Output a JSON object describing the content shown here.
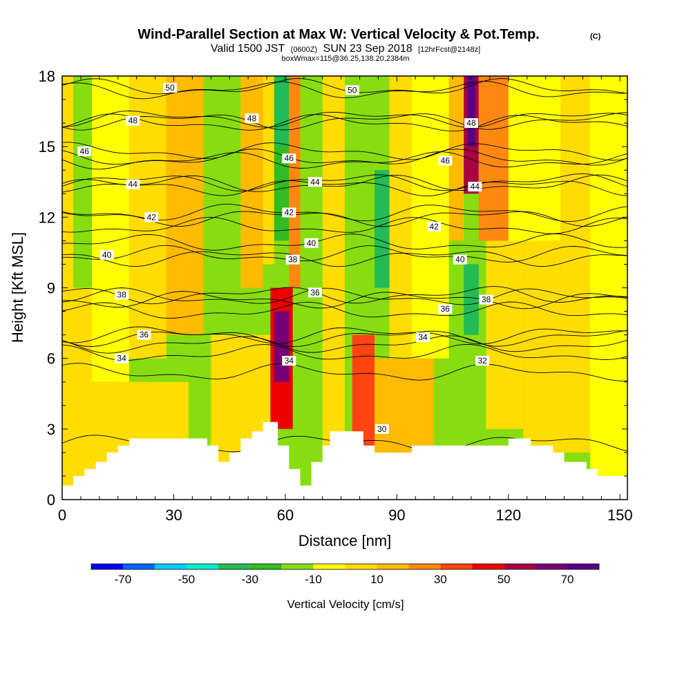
{
  "header": {
    "title": "Wind-Parallel Section at Max W: Vertical Velocity & Pot.Temp.",
    "copyright": "(C)",
    "valid_prefix": "Valid 1500 JST",
    "valid_utc": "(0600Z)",
    "valid_date": "SUN 23 Sep 2018",
    "forecast": "[12hrFcst@2148z]",
    "box_info": "boxWmax=115@36.25,138.20,2384m"
  },
  "chart_data": {
    "type": "heatmap",
    "xlabel": "Distance [nm]",
    "ylabel": "Height [Kft MSL]",
    "xlim": [
      0,
      152
    ],
    "ylim": [
      0,
      18
    ],
    "x_ticks": [
      0,
      30,
      60,
      90,
      120,
      150
    ],
    "y_ticks": [
      0,
      3,
      6,
      9,
      12,
      15,
      18
    ],
    "colorbar": {
      "title": "Vertical Velocity [cm/s]",
      "levels": [
        -80,
        -70,
        -60,
        -50,
        -40,
        -30,
        -20,
        -10,
        0,
        10,
        20,
        30,
        40,
        50,
        60,
        70,
        80
      ],
      "tick_labels": [
        "-70",
        "-50",
        "-30",
        "-10",
        "10",
        "30",
        "50",
        "70"
      ],
      "colors": [
        "#0000ee",
        "#0066ff",
        "#00ccff",
        "#00eecc",
        "#22bb55",
        "#33bb22",
        "#88dd11",
        "#ffff00",
        "#ffdd00",
        "#ffbb00",
        "#ff8811",
        "#ff4411",
        "#ee0000",
        "#aa0044",
        "#770077",
        "#550088"
      ]
    },
    "cells": [
      {
        "x0": 0,
        "x1": 3,
        "y0": 0,
        "y1": 18,
        "w": 5
      },
      {
        "x0": 3,
        "x1": 8,
        "y0": 9,
        "y1": 18,
        "w": -12
      },
      {
        "x0": 3,
        "x1": 8,
        "y0": 0,
        "y1": 9,
        "w": 5
      },
      {
        "x0": 8,
        "x1": 18,
        "y0": 5,
        "y1": 18,
        "w": -5
      },
      {
        "x0": 0,
        "x1": 35,
        "y0": 0,
        "y1": 5,
        "w": 5
      },
      {
        "x0": 18,
        "x1": 28,
        "y0": 6,
        "y1": 18,
        "w": 5
      },
      {
        "x0": 28,
        "x1": 38,
        "y0": 7,
        "y1": 18,
        "w": 15
      },
      {
        "x0": 34,
        "x1": 40,
        "y0": 1,
        "y1": 7,
        "w": -12
      },
      {
        "x0": 38,
        "x1": 48,
        "y0": 7,
        "y1": 18,
        "w": -15
      },
      {
        "x0": 40,
        "x1": 56,
        "y0": 0,
        "y1": 7,
        "w": 5
      },
      {
        "x0": 48,
        "x1": 54,
        "y0": 9,
        "y1": 18,
        "w": 15
      },
      {
        "x0": 54,
        "x1": 57,
        "y0": 10,
        "y1": 18,
        "w": 5
      },
      {
        "x0": 57,
        "x1": 61,
        "y0": 15,
        "y1": 18,
        "w": -35
      },
      {
        "x0": 57,
        "x1": 61,
        "y0": 11,
        "y1": 15,
        "w": -22
      },
      {
        "x0": 56,
        "x1": 62,
        "y0": 3,
        "y1": 9,
        "w": 45
      },
      {
        "x0": 57,
        "x1": 61,
        "y0": 5,
        "y1": 8,
        "w": 65
      },
      {
        "x0": 61,
        "x1": 64,
        "y0": 9,
        "y1": 18,
        "w": 25
      },
      {
        "x0": 64,
        "x1": 70,
        "y0": 0,
        "y1": 18,
        "w": -12
      },
      {
        "x0": 70,
        "x1": 76,
        "y0": 0,
        "y1": 18,
        "w": 5
      },
      {
        "x0": 76,
        "x1": 88,
        "y0": 5,
        "y1": 18,
        "w": -15
      },
      {
        "x0": 84,
        "x1": 88,
        "y0": 9,
        "y1": 14,
        "w": -35
      },
      {
        "x0": 78,
        "x1": 84,
        "y0": 2,
        "y1": 7,
        "w": 35
      },
      {
        "x0": 84,
        "x1": 100,
        "y0": 2,
        "y1": 6,
        "w": 15
      },
      {
        "x0": 88,
        "x1": 94,
        "y0": 6,
        "y1": 18,
        "w": 5
      },
      {
        "x0": 94,
        "x1": 104,
        "y0": 6,
        "y1": 18,
        "w": -5
      },
      {
        "x0": 104,
        "x1": 108,
        "y0": 11,
        "y1": 18,
        "w": 15
      },
      {
        "x0": 104,
        "x1": 114,
        "y0": 5,
        "y1": 11,
        "w": -15
      },
      {
        "x0": 108,
        "x1": 112,
        "y0": 7,
        "y1": 10,
        "w": -35
      },
      {
        "x0": 108,
        "x1": 112,
        "y0": 13,
        "y1": 18,
        "w": 55
      },
      {
        "x0": 109,
        "x1": 111,
        "y0": 15,
        "y1": 18,
        "w": 75
      },
      {
        "x0": 112,
        "x1": 120,
        "y0": 11,
        "y1": 18,
        "w": 25
      },
      {
        "x0": 114,
        "x1": 124,
        "y0": 3,
        "y1": 11,
        "w": 5
      },
      {
        "x0": 120,
        "x1": 135,
        "y0": 11,
        "y1": 18,
        "w": -5
      },
      {
        "x0": 124,
        "x1": 134,
        "y0": 2,
        "y1": 11,
        "w": 5
      },
      {
        "x0": 134,
        "x1": 142,
        "y0": 2,
        "y1": 18,
        "w": 5
      },
      {
        "x0": 142,
        "x1": 152,
        "y0": 1,
        "y1": 18,
        "w": -5
      }
    ],
    "terrain": [
      {
        "x": 0,
        "y": 0.6
      },
      {
        "x": 3,
        "y": 0.6
      },
      {
        "x": 3,
        "y": 1.0
      },
      {
        "x": 6,
        "y": 1.0
      },
      {
        "x": 6,
        "y": 1.3
      },
      {
        "x": 9,
        "y": 1.3
      },
      {
        "x": 9,
        "y": 1.6
      },
      {
        "x": 12,
        "y": 1.6
      },
      {
        "x": 12,
        "y": 2.0
      },
      {
        "x": 15,
        "y": 2.0
      },
      {
        "x": 15,
        "y": 2.3
      },
      {
        "x": 18,
        "y": 2.3
      },
      {
        "x": 18,
        "y": 2.6
      },
      {
        "x": 39,
        "y": 2.6
      },
      {
        "x": 39,
        "y": 2.3
      },
      {
        "x": 42,
        "y": 2.3
      },
      {
        "x": 42,
        "y": 1.6
      },
      {
        "x": 45,
        "y": 1.6
      },
      {
        "x": 45,
        "y": 2.0
      },
      {
        "x": 48,
        "y": 2.0
      },
      {
        "x": 48,
        "y": 2.6
      },
      {
        "x": 51,
        "y": 2.6
      },
      {
        "x": 51,
        "y": 2.9
      },
      {
        "x": 54,
        "y": 2.9
      },
      {
        "x": 54,
        "y": 3.3
      },
      {
        "x": 58,
        "y": 3.3
      },
      {
        "x": 58,
        "y": 2.3
      },
      {
        "x": 61,
        "y": 2.3
      },
      {
        "x": 61,
        "y": 1.3
      },
      {
        "x": 64,
        "y": 1.3
      },
      {
        "x": 64,
        "y": 0.6
      },
      {
        "x": 67,
        "y": 0.6
      },
      {
        "x": 67,
        "y": 1.6
      },
      {
        "x": 70,
        "y": 1.6
      },
      {
        "x": 70,
        "y": 2.3
      },
      {
        "x": 72,
        "y": 2.3
      },
      {
        "x": 72,
        "y": 2.9
      },
      {
        "x": 81,
        "y": 2.9
      },
      {
        "x": 81,
        "y": 2.3
      },
      {
        "x": 84,
        "y": 2.3
      },
      {
        "x": 84,
        "y": 2.0
      },
      {
        "x": 94,
        "y": 2.0
      },
      {
        "x": 94,
        "y": 2.3
      },
      {
        "x": 120,
        "y": 2.3
      },
      {
        "x": 120,
        "y": 2.6
      },
      {
        "x": 126,
        "y": 2.6
      },
      {
        "x": 126,
        "y": 2.3
      },
      {
        "x": 132,
        "y": 2.3
      },
      {
        "x": 132,
        "y": 2.0
      },
      {
        "x": 135,
        "y": 2.0
      },
      {
        "x": 135,
        "y": 1.6
      },
      {
        "x": 141,
        "y": 1.6
      },
      {
        "x": 141,
        "y": 1.3
      },
      {
        "x": 144,
        "y": 1.3
      },
      {
        "x": 144,
        "y": 1.0
      },
      {
        "x": 152,
        "y": 1.0
      }
    ],
    "contours": [
      {
        "value": 30,
        "y": 2.4,
        "label": "30",
        "label_x": 86,
        "label_y": 3.0
      },
      {
        "value": 32,
        "y": 5.4,
        "label": "32",
        "label_x": 113,
        "label_y": 5.9
      },
      {
        "value": 34,
        "y": 6.2,
        "label": "34",
        "label_x": 16,
        "label_y": 6.0
      },
      {
        "value": 34,
        "y": 6.6,
        "label": "34",
        "label_x": 61,
        "label_y": 5.9
      },
      {
        "value": 34,
        "y": 6.9,
        "label": "34",
        "label_x": 97,
        "label_y": 6.9
      },
      {
        "value": 36,
        "y": 7.0,
        "label": "36",
        "label_x": 22,
        "label_y": 7.0
      },
      {
        "value": 36,
        "y": 8.6,
        "label": "36",
        "label_x": 68,
        "label_y": 8.8
      },
      {
        "value": 36,
        "y": 8.0,
        "label": "36",
        "label_x": 103,
        "label_y": 8.1
      },
      {
        "value": 38,
        "y": 8.7,
        "label": "38",
        "label_x": 16,
        "label_y": 8.7
      },
      {
        "value": 38,
        "y": 10.3,
        "label": "38",
        "label_x": 62,
        "label_y": 10.2
      },
      {
        "value": 38,
        "y": 8.5,
        "label": "38",
        "label_x": 114,
        "label_y": 8.5
      },
      {
        "value": 40,
        "y": 10.4,
        "label": "40",
        "label_x": 12,
        "label_y": 10.4
      },
      {
        "value": 40,
        "y": 10.9,
        "label": "40",
        "label_x": 67,
        "label_y": 10.9
      },
      {
        "value": 40,
        "y": 10.4,
        "label": "40",
        "label_x": 107,
        "label_y": 10.2
      },
      {
        "value": 42,
        "y": 12.0,
        "label": "42",
        "label_x": 24,
        "label_y": 12.0
      },
      {
        "value": 42,
        "y": 12.2,
        "label": "42",
        "label_x": 61,
        "label_y": 12.2
      },
      {
        "value": 42,
        "y": 11.6,
        "label": "42",
        "label_x": 100,
        "label_y": 11.6
      },
      {
        "value": 44,
        "y": 13.4,
        "label": "44",
        "label_x": 19,
        "label_y": 13.4
      },
      {
        "value": 44,
        "y": 13.5,
        "label": "44",
        "label_x": 68,
        "label_y": 13.5
      },
      {
        "value": 44,
        "y": 13.3,
        "label": "44",
        "label_x": 111,
        "label_y": 13.3
      },
      {
        "value": 46,
        "y": 14.8,
        "label": "46",
        "label_x": 6,
        "label_y": 14.8
      },
      {
        "value": 46,
        "y": 14.5,
        "label": "46",
        "label_x": 61,
        "label_y": 14.5
      },
      {
        "value": 46,
        "y": 14.4,
        "label": "46",
        "label_x": 103,
        "label_y": 14.4
      },
      {
        "value": 48,
        "y": 16.1,
        "label": "48",
        "label_x": 19,
        "label_y": 16.1
      },
      {
        "value": 48,
        "y": 16.2,
        "label": "48",
        "label_x": 51,
        "label_y": 16.2
      },
      {
        "value": 48,
        "y": 16.0,
        "label": "48",
        "label_x": 110,
        "label_y": 16.0
      },
      {
        "value": 50,
        "y": 17.5,
        "label": "50",
        "label_x": 29,
        "label_y": 17.5
      },
      {
        "value": 50,
        "y": 17.4,
        "label": "50",
        "label_x": 78,
        "label_y": 17.4
      }
    ]
  }
}
